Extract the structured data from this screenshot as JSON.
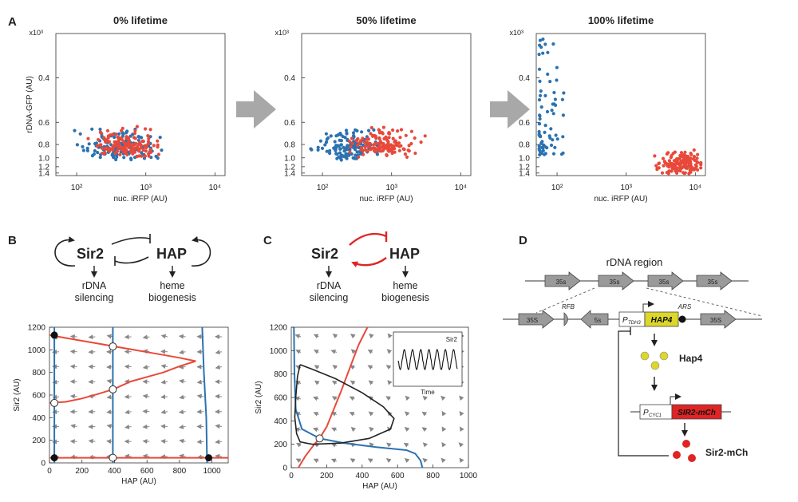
{
  "panel_labels": {
    "A": "A",
    "B": "B",
    "C": "C",
    "D": "D"
  },
  "panel_a": {
    "exponent_label": "x10³",
    "ylabel": "rDNA-GFP (AU)",
    "xlabel": "nuc. iRFP (AU)",
    "yticks": [
      "0.4",
      "0.6",
      "0.8",
      "1.0",
      "1.2",
      "1.4"
    ],
    "xticks": [
      "10²",
      "10³",
      "10⁴"
    ],
    "colors": {
      "blue": "#2b72b0",
      "red": "#e8493a",
      "arrow": "#a8a8a8"
    }
  },
  "panel_b": {
    "sir2": "Sir2",
    "hap": "HAP",
    "sir2_out": [
      "rDNA",
      "silencing"
    ],
    "hap_out": [
      "heme",
      "biogenesis"
    ]
  },
  "panel_c": {
    "sir2": "Sir2",
    "hap": "HAP",
    "sir2_out": [
      "rDNA",
      "silencing"
    ],
    "hap_out": [
      "heme",
      "biogenesis"
    ],
    "inset_label": "Sir2",
    "inset_xlabel": "Time"
  },
  "panel_d": {
    "title": "rDNA region",
    "segment_35s": "35s",
    "segment_35S": "35S",
    "rfb": "RFB",
    "segment_5s": "5s",
    "promoter_tdh3": "P",
    "promoter_tdh3_sub": "TDH3",
    "hap4_gene": "HAP4",
    "ars": "ARS",
    "hap4_protein": "Hap4",
    "promoter_cyc1": "P",
    "promoter_cyc1_sub": "CYC1",
    "sir2_gene": "SIR2-mCh",
    "sir2_protein": "Sir2-mCh",
    "colors": {
      "hap4": "#dcd72a",
      "sir2": "#e02424"
    }
  },
  "chart_data": [
    {
      "type": "scatter",
      "title": "0% lifetime",
      "xlabel": "nuc. iRFP (AU)",
      "ylabel": "rDNA-GFP (AU)",
      "x_scale": "log",
      "y_scale": "reciprocal",
      "xlim": [
        50,
        14000
      ],
      "ylim": [
        0.3,
        1.5
      ],
      "series": [
        {
          "color": "#2b72b0",
          "x_range": [
            70,
            2100
          ],
          "y_range": [
            0.62,
            1.05
          ],
          "description": "dense cluster"
        },
        {
          "color": "#e8493a",
          "x_range": [
            120,
            2100
          ],
          "y_range": [
            0.62,
            1.0
          ],
          "description": "dense cluster"
        }
      ]
    },
    {
      "type": "scatter",
      "title": "50% lifetime",
      "xlabel": "nuc. iRFP (AU)",
      "ylabel": "rDNA-GFP (AU)",
      "x_scale": "log",
      "y_scale": "reciprocal",
      "xlim": [
        50,
        14000
      ],
      "ylim": [
        0.3,
        1.5
      ],
      "series": [
        {
          "color": "#2b72b0",
          "x_range": [
            55,
            1000
          ],
          "y_range": [
            0.62,
            1.05
          ]
        },
        {
          "color": "#e8493a",
          "x_range": [
            150,
            3500
          ],
          "y_range": [
            0.62,
            1.0
          ]
        }
      ]
    },
    {
      "type": "scatter",
      "title": "100% lifetime",
      "xlabel": "nuc. iRFP (AU)",
      "ylabel": "rDNA-GFP (AU)",
      "x_scale": "log",
      "y_scale": "reciprocal",
      "xlim": [
        50,
        14000
      ],
      "ylim": [
        0.3,
        1.5
      ],
      "series": [
        {
          "color": "#2b72b0",
          "x_range": [
            55,
            130
          ],
          "y_range": [
            0.3,
            0.95
          ]
        },
        {
          "color": "#e8493a",
          "x_range": [
            1500,
            12000
          ],
          "y_range": [
            0.85,
            1.45
          ]
        }
      ]
    },
    {
      "type": "line",
      "xlabel": "HAP (AU)",
      "ylabel": "Sir2 (AU)",
      "xlim": [
        0,
        1100
      ],
      "ylim": [
        0,
        1200
      ],
      "xticks": [
        0,
        200,
        400,
        600,
        800,
        1000
      ],
      "yticks": [
        0,
        200,
        400,
        600,
        800,
        1000,
        1200
      ],
      "series": [
        {
          "color": "#e8493a",
          "points": [
            [
              0,
              1130
            ],
            [
              100,
              1105
            ],
            [
              200,
              1080
            ],
            [
              300,
              1055
            ],
            [
              400,
              1030
            ],
            [
              500,
              1005
            ],
            [
              600,
              980
            ],
            [
              700,
              955
            ],
            [
              800,
              930
            ],
            [
              900,
              900
            ]
          ]
        },
        {
          "color": "#e8493a",
          "points": [
            [
              900,
              900
            ],
            [
              800,
              855
            ],
            [
              700,
              800
            ],
            [
              600,
              760
            ],
            [
              500,
              720
            ],
            [
              400,
              655
            ],
            [
              300,
              610
            ],
            [
              200,
              570
            ],
            [
              100,
              540
            ],
            [
              0,
              530
            ]
          ]
        },
        {
          "color": "#e8493a",
          "points": [
            [
              0,
              45
            ],
            [
              1100,
              45
            ]
          ]
        },
        {
          "color": "#2b72b0",
          "points": [
            [
              30,
              0
            ],
            [
              30,
              1200
            ]
          ]
        },
        {
          "color": "#2b72b0",
          "points": [
            [
              390,
              0
            ],
            [
              390,
              1200
            ]
          ]
        },
        {
          "color": "#2b72b0",
          "points": [
            [
              970,
              0
            ],
            [
              965,
              400
            ],
            [
              950,
              800
            ],
            [
              940,
              1200
            ]
          ]
        }
      ],
      "fixed_points": {
        "stable": [
          [
            30,
            1130
          ],
          [
            30,
            45
          ],
          [
            980,
            45
          ]
        ],
        "unstable": [
          [
            390,
            1030
          ],
          [
            390,
            650
          ],
          [
            30,
            530
          ],
          [
            390,
            45
          ]
        ]
      }
    },
    {
      "type": "line",
      "xlabel": "HAP (AU)",
      "ylabel": "Sir2 (AU)",
      "xlim": [
        0,
        1000
      ],
      "ylim": [
        0,
        1200
      ],
      "xticks": [
        0,
        200,
        400,
        600,
        800,
        1000
      ],
      "yticks": [
        0,
        200,
        400,
        600,
        800,
        1000,
        1200
      ],
      "series": [
        {
          "color": "#e8493a",
          "points": [
            [
              40,
              0
            ],
            [
              80,
              100
            ],
            [
              130,
              200
            ],
            [
              160,
              250
            ],
            [
              200,
              350
            ],
            [
              240,
              500
            ],
            [
              280,
              650
            ],
            [
              330,
              850
            ],
            [
              380,
              1050
            ],
            [
              430,
              1200
            ]
          ]
        },
        {
          "color": "#2b72b0",
          "points": [
            [
              15,
              1200
            ],
            [
              18,
              800
            ],
            [
              25,
              500
            ],
            [
              60,
              330
            ],
            [
              160,
              250
            ],
            [
              300,
              210
            ],
            [
              480,
              175
            ],
            [
              650,
              150
            ],
            [
              700,
              120
            ],
            [
              730,
              60
            ],
            [
              740,
              0
            ]
          ]
        },
        {
          "color": "#222222",
          "points": [
            [
              50,
              880
            ],
            [
              120,
              840
            ],
            [
              250,
              760
            ],
            [
              400,
              640
            ],
            [
              520,
              520
            ],
            [
              580,
              420
            ],
            [
              560,
              330
            ],
            [
              440,
              250
            ],
            [
              280,
              210
            ],
            [
              120,
              200
            ],
            [
              50,
              220
            ],
            [
              30,
              290
            ],
            [
              20,
              430
            ],
            [
              25,
              600
            ],
            [
              35,
              780
            ],
            [
              50,
              880
            ]
          ]
        }
      ],
      "fixed_points": {
        "unstable": [
          [
            160,
            250
          ]
        ]
      },
      "inset": {
        "label": "Sir2",
        "xlabel": "Time"
      }
    }
  ]
}
